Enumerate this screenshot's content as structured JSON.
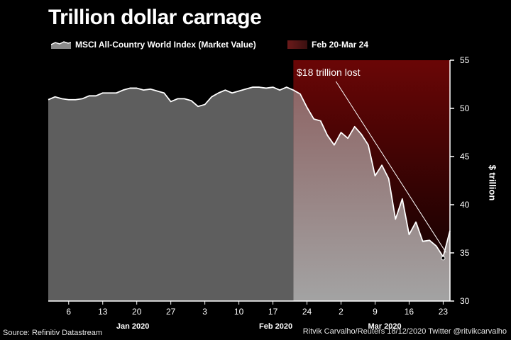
{
  "title": "Trillion dollar carnage",
  "legend": {
    "index_label": "MSCI All-Country World Index (Market Value)",
    "range_label": "Feb 20-Mar 24"
  },
  "annotation": "$18 trillion lost",
  "source": "Source: Refinitiv Datastream",
  "credit": "Ritvik Carvalho/Reuters 18/12/2020 Twitter @ritvikcarvalho",
  "colors": {
    "background": "#000000",
    "area_before": "#5e5e5e",
    "area_after": "#9c9c9c",
    "highlight_top": "#6a0606",
    "line": "#ffffff"
  },
  "chart_data": {
    "type": "area",
    "title": "Trillion dollar carnage",
    "xlabel": "",
    "ylabel": "$ trillion",
    "ylim": [
      30,
      55
    ],
    "yticks": [
      30,
      35,
      40,
      45,
      50,
      55
    ],
    "x_tick_labels": [
      "6",
      "13",
      "20",
      "27",
      "3",
      "10",
      "17",
      "24",
      "2",
      "9",
      "16",
      "23"
    ],
    "x_tick_index": [
      3,
      8,
      13,
      18,
      23,
      28,
      33,
      38,
      43,
      48,
      53,
      58
    ],
    "month_labels": [
      {
        "label": "Jan 2020",
        "index": 12
      },
      {
        "label": "Feb 2020",
        "index": 33
      },
      {
        "label": "Mar 2020",
        "index": 49
      }
    ],
    "highlight": {
      "label": "Feb 20-Mar 24",
      "start_index": 36,
      "end_index": 59
    },
    "annotation": {
      "text": "$18 trillion lost",
      "from_index": 36,
      "to_index": 59
    },
    "series": [
      {
        "name": "MSCI All-Country World Index (Market Value)",
        "values": [
          50.9,
          51.2,
          51.0,
          50.9,
          50.9,
          51.0,
          51.3,
          51.3,
          51.6,
          51.6,
          51.6,
          51.9,
          52.1,
          52.1,
          51.9,
          52.0,
          51.8,
          51.6,
          50.7,
          51.0,
          51.0,
          50.8,
          50.2,
          50.4,
          51.2,
          51.6,
          51.9,
          51.6,
          51.8,
          52.0,
          52.2,
          52.2,
          52.1,
          52.2,
          51.9,
          52.2,
          51.9,
          51.5,
          50.1,
          48.9,
          48.7,
          47.2,
          46.2,
          47.5,
          46.9,
          48.1,
          47.3,
          46.2,
          43.0,
          44.1,
          42.7,
          38.5,
          40.6,
          36.9,
          38.2,
          36.2,
          36.3,
          35.7,
          34.6,
          37.3
        ]
      }
    ]
  }
}
